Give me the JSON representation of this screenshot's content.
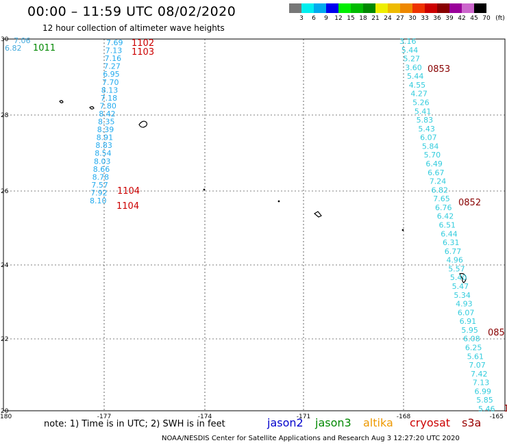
{
  "title": "00:00 – 11:59 UTC 08/02/2020",
  "subtitle": "12 hour collection of altimeter wave heights",
  "color_scale": {
    "colors": [
      "#777777",
      "#00eeee",
      "#00aaee",
      "#0000ee",
      "#00ee00",
      "#00bb00",
      "#008800",
      "#eeee00",
      "#eebb00",
      "#ee8800",
      "#ee3300",
      "#cc0000",
      "#880000",
      "#990099",
      "#cc66cc",
      "#000000"
    ],
    "labels": [
      "3",
      "6",
      "9",
      "12",
      "15",
      "18",
      "21",
      "24",
      "27",
      "30",
      "33",
      "36",
      "39",
      "42",
      "45",
      "70",
      "(ft)"
    ]
  },
  "map": {
    "x_ticks": [
      "-180",
      "-177",
      "-174",
      "-171",
      "-168",
      "-165"
    ],
    "y_ticks": [
      "30",
      "28",
      "26",
      "24",
      "22",
      "20"
    ]
  },
  "tracks": [
    {
      "values": [
        "7.06",
        "6.82"
      ],
      "color": "#44aadd"
    },
    {
      "values": [
        "7.69",
        "7.13",
        "7.16",
        "7.27",
        "6.95",
        "7.70",
        "8.13",
        "7.18",
        "7.80",
        "8.42",
        "8.35",
        "8.39",
        "8.91",
        "8.83",
        "8.54",
        "8.03",
        "8.66",
        "8.78",
        "7.57",
        "7.92",
        "8.10"
      ],
      "color": "#22aaee"
    },
    {
      "values": [
        "3.16",
        "5.44",
        "5.27",
        "3.60",
        "5.44",
        "4.55",
        "4.27",
        "5.26",
        "5.41",
        "5.83",
        "5.43",
        "6.07",
        "5.84",
        "5.70",
        "6.49",
        "6.67",
        "7.24",
        "6.82",
        "7.65",
        "6.76",
        "6.42",
        "6.51",
        "6.44",
        "6.31",
        "6.77",
        "4.96",
        "5.57",
        "5.40",
        "5.47",
        "5.34",
        "4.93",
        "6.07",
        "6.91",
        "5.95",
        "6.08",
        "6.25",
        "5.61",
        "7.07",
        "7.42",
        "7.13",
        "6.99",
        "5.85",
        "5.46"
      ],
      "color": "#33ccdd"
    }
  ],
  "time_labels": [
    {
      "text": "1011",
      "color": "#008800"
    },
    {
      "text": "1102",
      "color": "#cc0000"
    },
    {
      "text": "1103",
      "color": "#cc0000"
    },
    {
      "text": "1104",
      "color": "#cc0000"
    },
    {
      "text": "1104",
      "color": "#cc0000"
    },
    {
      "text": "0853",
      "color": "#880000"
    },
    {
      "text": "0852",
      "color": "#880000"
    },
    {
      "text": "085",
      "color": "#880000"
    },
    {
      "text": "1",
      "color": "#880000"
    }
  ],
  "footer": {
    "note": "note:  1) Time is in UTC;  2) SWH is in feet",
    "legend": [
      {
        "label": "jason2",
        "color": "#0000cc"
      },
      {
        "label": "jason3",
        "color": "#008800"
      },
      {
        "label": "altika",
        "color": "#ee9900"
      },
      {
        "label": "cryosat",
        "color": "#cc0000"
      },
      {
        "label": "s3a",
        "color": "#990000"
      }
    ],
    "credit": "NOAA/NESDIS Center for Satellite Applications and Research    Aug  3 12:27:20 UTC 2020"
  }
}
